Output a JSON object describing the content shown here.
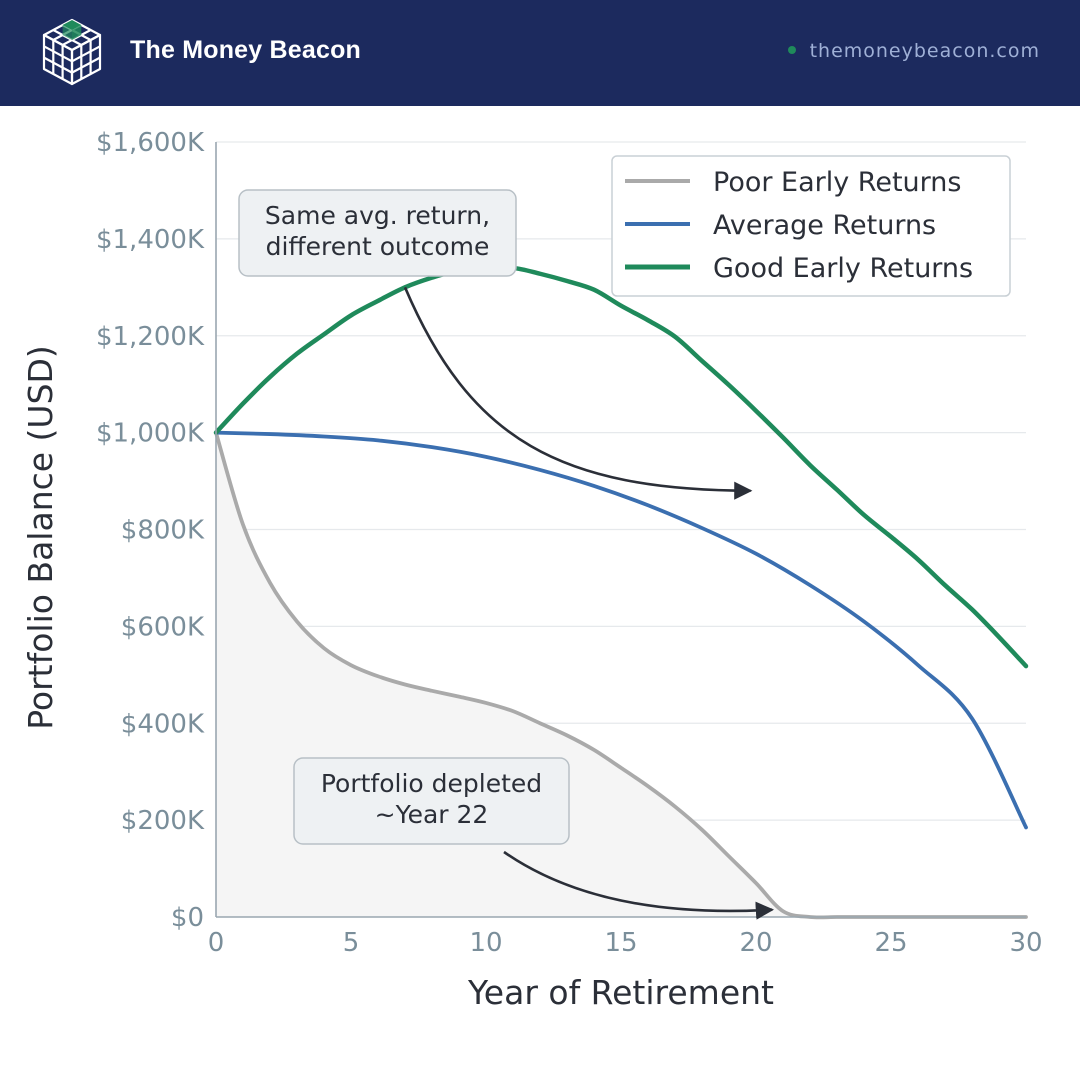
{
  "header": {
    "brand": "The Money Beacon",
    "site": "themoneybeacon.com",
    "logo_icon": "cube-grid-icon",
    "background_color": "#1c2a5e"
  },
  "chart_data": {
    "type": "line",
    "xlabel": "Year of Retirement",
    "ylabel": "Portfolio Balance (USD)",
    "xlim": [
      0,
      30
    ],
    "ylim": [
      0,
      1600
    ],
    "x_ticks": [
      0,
      5,
      10,
      15,
      20,
      25,
      30
    ],
    "y_ticks": [
      0,
      200,
      400,
      600,
      800,
      1000,
      1200,
      1400,
      1600
    ],
    "y_tick_labels": [
      "$0",
      "$200K",
      "$400K",
      "$600K",
      "$800K",
      "$1,000K",
      "$1,200K",
      "$1,400K",
      "$1,600K"
    ],
    "y_unit": "thousand USD",
    "grid": true,
    "legend_position": "top-right",
    "series": [
      {
        "name": "Poor Early Returns",
        "color": "#aaaaaa",
        "fill_under": true,
        "x": [
          0,
          1,
          2,
          3,
          4,
          5,
          6,
          7,
          8,
          9,
          10,
          11,
          12,
          13,
          14,
          15,
          16,
          17,
          18,
          19,
          20,
          21,
          22,
          23,
          24,
          25,
          26,
          27,
          28,
          29,
          30
        ],
        "y": [
          1000,
          810,
          690,
          610,
          555,
          520,
          497,
          480,
          467,
          455,
          442,
          425,
          400,
          375,
          345,
          308,
          270,
          228,
          180,
          125,
          70,
          12,
          0,
          0,
          0,
          0,
          0,
          0,
          0,
          0,
          0
        ]
      },
      {
        "name": "Average Returns",
        "color": "#3b6fb0",
        "fill_under": false,
        "x": [
          0,
          2,
          4,
          6,
          8,
          10,
          12,
          14,
          16,
          18,
          20,
          22,
          24,
          26,
          28,
          30
        ],
        "y": [
          1000,
          997,
          992,
          984,
          970,
          950,
          923,
          890,
          850,
          803,
          750,
          685,
          610,
          520,
          410,
          185
        ]
      },
      {
        "name": "Good Early Returns",
        "color": "#1f8a5b",
        "fill_under": false,
        "x": [
          0,
          1,
          2,
          3,
          4,
          5,
          6,
          7,
          8,
          9,
          10,
          11,
          12,
          13,
          14,
          15,
          16,
          17,
          18,
          19,
          20,
          21,
          22,
          23,
          24,
          25,
          26,
          27,
          28,
          29,
          30
        ],
        "y": [
          1000,
          1060,
          1115,
          1163,
          1203,
          1242,
          1272,
          1300,
          1320,
          1335,
          1338,
          1340,
          1328,
          1313,
          1295,
          1262,
          1232,
          1198,
          1148,
          1098,
          1045,
          990,
          933,
          882,
          830,
          785,
          738,
          685,
          635,
          578,
          518
        ]
      }
    ],
    "annotations": [
      {
        "text_lines": [
          "Same avg. return,",
          "different outcome"
        ],
        "arrow_from": [
          7,
          1300
        ],
        "arrow_to": [
          19.8,
          880
        ]
      },
      {
        "text_lines": [
          "Portfolio depleted",
          "~Year 22"
        ],
        "arrow_from": [
          10.5,
          135
        ],
        "arrow_to": [
          20.6,
          15
        ]
      }
    ]
  }
}
